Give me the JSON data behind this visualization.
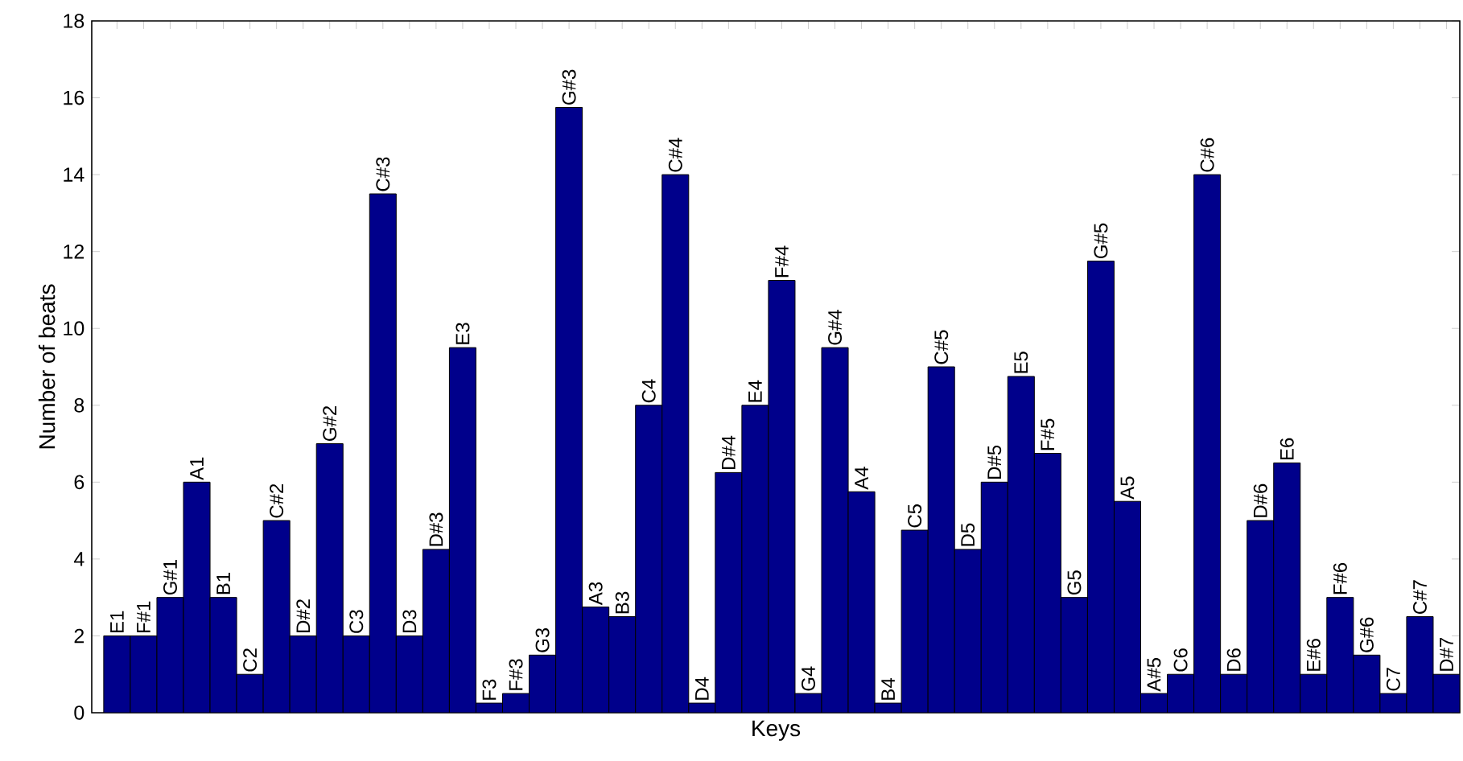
{
  "chart_data": {
    "type": "bar",
    "xlabel": "Keys",
    "ylabel": "Number of beats",
    "color": "#00008b",
    "categories": [
      "E1",
      "F#1",
      "G#1",
      "A1",
      "B1",
      "C2",
      "C#2",
      "D#2",
      "G#2",
      "C3",
      "C#3",
      "D3",
      "D#3",
      "E3",
      "F3",
      "F#3",
      "G3",
      "G#3",
      "A3",
      "B3",
      "C4",
      "C#4",
      "D4",
      "D#4",
      "E4",
      "F#4",
      "G4",
      "G#4",
      "A4",
      "B4",
      "C5",
      "C#5",
      "D5",
      "D#5",
      "E5",
      "F#5",
      "G5",
      "G#5",
      "A5",
      "A#5",
      "C6",
      "C#6",
      "D6",
      "D#6",
      "E6",
      "E#6",
      "F#6",
      "G#6",
      "C7",
      "C#7",
      "D#7"
    ],
    "values": [
      2,
      2,
      3,
      6,
      3,
      1,
      5,
      2,
      7,
      2,
      13.5,
      2,
      4.25,
      9.5,
      0.25,
      0.5,
      1.5,
      15.75,
      2.75,
      2.5,
      8,
      14,
      0.25,
      6.25,
      8,
      11.25,
      0.5,
      9.5,
      5.75,
      0.25,
      4.75,
      9,
      4.25,
      6,
      8.75,
      6.75,
      3,
      11.75,
      5.5,
      0.5,
      1,
      14,
      1,
      5,
      6.5,
      1,
      3,
      1.5,
      0.5,
      2.5,
      1
    ],
    "ylim": [
      0,
      18
    ],
    "yticks": [
      0,
      2,
      4,
      6,
      8,
      10,
      12,
      14,
      16,
      18
    ],
    "tick_labels": "y",
    "grid": false
  }
}
